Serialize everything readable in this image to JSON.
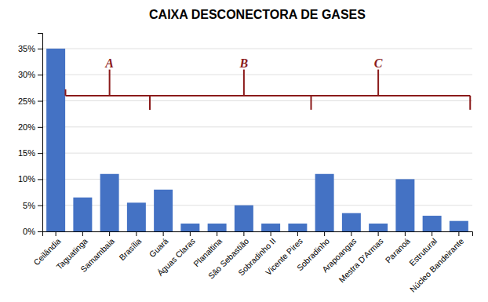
{
  "chart_data": {
    "type": "bar",
    "title": "CAIXA DESCONECTORA DE GASES",
    "categories": [
      "Ceilândia",
      "Taguatinga",
      "Samambaia",
      "Brasília",
      "Guará",
      "Águas Claras",
      "Planaltina",
      "São Sebastião",
      "Sobradinho II",
      "Vicente Pires",
      "Sobradinho",
      "Arapoangas",
      "Mestra D'Armas",
      "Paranoá",
      "Estrutural",
      "Núcleo Bandeirante"
    ],
    "values": [
      35,
      6.5,
      11,
      5.5,
      8,
      1.5,
      1.5,
      5,
      1.5,
      1.5,
      11,
      3.5,
      1.5,
      10,
      3,
      2
    ],
    "color": "#4472C4",
    "ylim": [
      0,
      38
    ],
    "yticks": [
      {
        "value": 0,
        "label": "0%"
      },
      {
        "value": 5,
        "label": "5%"
      },
      {
        "value": 10,
        "label": "10%"
      },
      {
        "value": 15,
        "label": "15%"
      },
      {
        "value": 20,
        "label": "20%"
      },
      {
        "value": 25,
        "label": "25%"
      },
      {
        "value": 30,
        "label": "30%"
      },
      {
        "value": 35,
        "label": "35%"
      }
    ],
    "grid": true,
    "annotations": [
      {
        "text": "A",
        "x": "Samambaia",
        "y": 31
      },
      {
        "text": "B",
        "x": "São Sebastião",
        "y": 31
      },
      {
        "text": "C",
        "x": "Mestra D'Armas",
        "y": 31
      }
    ],
    "bracket": {
      "y": 26,
      "start": "Ceilândia",
      "end": "Núcleo Bandeirante",
      "dividers": [
        "Guará",
        "Sobradinho"
      ],
      "color": "#8B1A1A"
    }
  }
}
